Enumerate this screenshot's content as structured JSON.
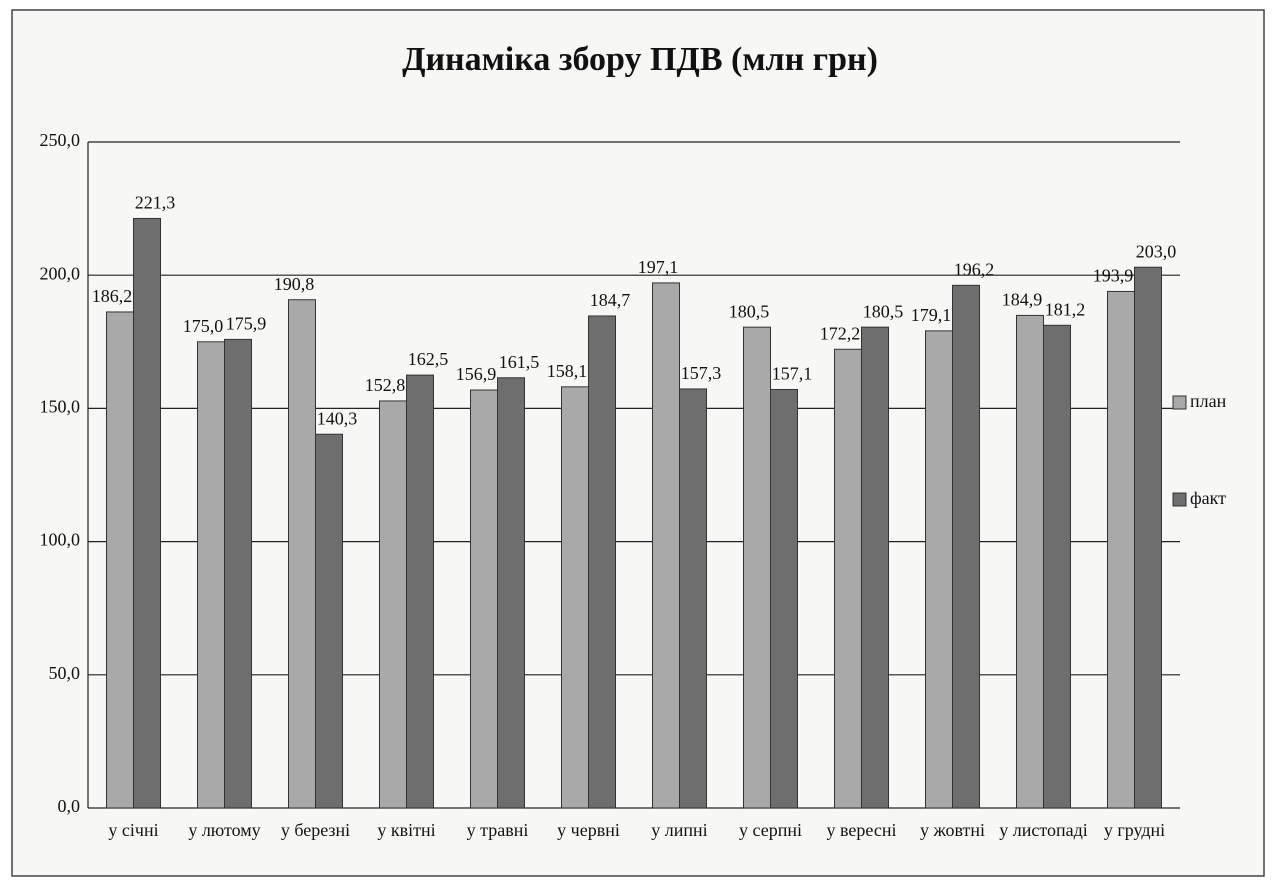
{
  "chart_data": {
    "type": "bar",
    "title": "Динаміка збору ПДВ  (млн грн)",
    "categories": [
      "у січні",
      "у лютому",
      "у березні",
      "у квітні",
      "у травні",
      "у червні",
      "у липні",
      "у серпні",
      "у вересні",
      "у жовтні",
      "у листопаді",
      "у грудні"
    ],
    "series": [
      {
        "name": "план",
        "color": "#a9a9a9",
        "values": [
          186.2,
          175.0,
          190.8,
          152.8,
          156.9,
          158.1,
          197.1,
          180.5,
          172.2,
          179.1,
          184.9,
          193.9
        ],
        "value_labels": [
          "186,2",
          "175,0",
          "190,8",
          "152,8",
          "156,9",
          "158,1",
          "197,1",
          "180,5",
          "172,2",
          "179,1",
          "184,9",
          "193,9"
        ]
      },
      {
        "name": "факт",
        "color": "#6e6e6e",
        "values": [
          221.3,
          175.9,
          140.3,
          162.5,
          161.5,
          184.7,
          157.3,
          157.1,
          180.5,
          196.2,
          181.2,
          203.0
        ],
        "value_labels": [
          "221,3",
          "175,9",
          "140,3",
          "162,5",
          "161,5",
          "184,7",
          "157,3",
          "157,1",
          "180,5",
          "196,2",
          "181,2",
          "203,0"
        ]
      }
    ],
    "ylim": [
      0,
      250
    ],
    "yticks": [
      {
        "value": 0,
        "label": "0,0"
      },
      {
        "value": 50,
        "label": "50,0"
      },
      {
        "value": 100,
        "label": "100,0"
      },
      {
        "value": 150,
        "label": "150,0"
      },
      {
        "value": 200,
        "label": "200,0"
      },
      {
        "value": 250,
        "label": "250,0"
      }
    ],
    "grid": true,
    "legend": "right"
  }
}
